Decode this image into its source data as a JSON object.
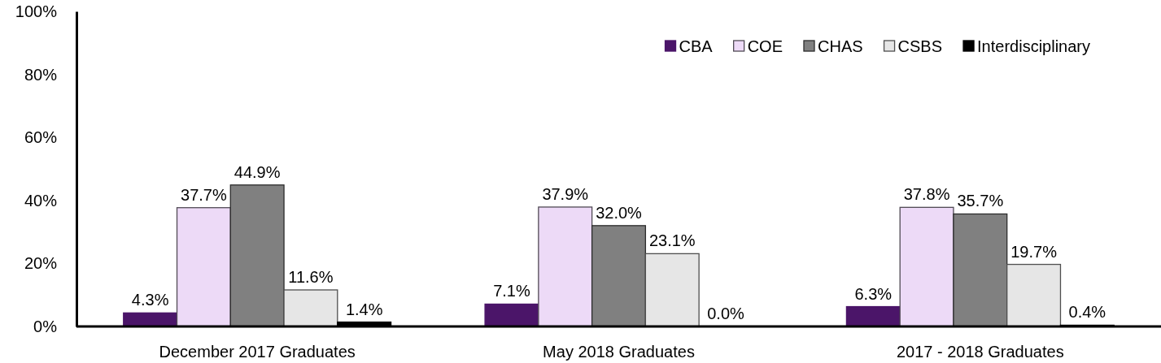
{
  "chart_data": {
    "type": "bar",
    "categories": [
      "December 2017 Graduates",
      "May 2018 Graduates",
      "2017 - 2018 Graduates"
    ],
    "series": [
      {
        "name": "CBA",
        "color": "#4b1569",
        "values": [
          4.3,
          7.1,
          6.3
        ],
        "value_labels": [
          "4.3%",
          "7.1%",
          "6.3%"
        ]
      },
      {
        "name": "COE",
        "color": "#eddaf7",
        "values": [
          37.7,
          37.9,
          37.8
        ],
        "value_labels": [
          "37.7%",
          "37.9%",
          "37.8%"
        ]
      },
      {
        "name": "CHAS",
        "color": "#808080",
        "values": [
          44.9,
          32.0,
          35.7
        ],
        "value_labels": [
          "44.9%",
          "32.0%",
          "35.7%"
        ]
      },
      {
        "name": "CSBS",
        "color": "#e6e6e6",
        "values": [
          11.6,
          23.1,
          19.7
        ],
        "value_labels": [
          "11.6%",
          "23.1%",
          "19.7%"
        ]
      },
      {
        "name": "Interdisciplinary",
        "color": "#000000",
        "values": [
          1.4,
          0.0,
          0.4
        ],
        "value_labels": [
          "1.4%",
          "0.0%",
          "0.4%"
        ]
      }
    ],
    "ylim": [
      0,
      100
    ],
    "yticks": [
      {
        "value": 0,
        "label": "0%"
      },
      {
        "value": 20,
        "label": "20%"
      },
      {
        "value": 40,
        "label": "40%"
      },
      {
        "value": 60,
        "label": "60%"
      },
      {
        "value": 80,
        "label": "80%"
      },
      {
        "value": 100,
        "label": "100%"
      }
    ],
    "legend": "top right",
    "grid": false
  }
}
